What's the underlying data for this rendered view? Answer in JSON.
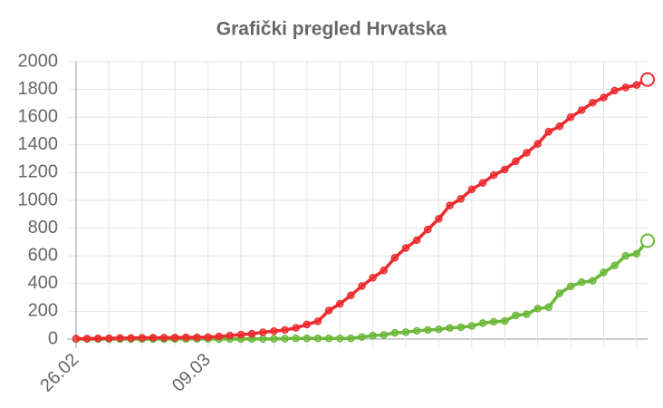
{
  "chart_data": {
    "type": "line",
    "title": "Grafički pregled Hrvatska",
    "categories": [
      "26.02",
      null,
      null,
      null,
      null,
      null,
      null,
      null,
      null,
      null,
      null,
      null,
      "09.03",
      null,
      null,
      null,
      null,
      null,
      null,
      null,
      null,
      null,
      null,
      null,
      null,
      null,
      null,
      null,
      null,
      null,
      null,
      null,
      null,
      null,
      null,
      null,
      null,
      null,
      null,
      null,
      null,
      null,
      null,
      null,
      null,
      null,
      null,
      null,
      null,
      null,
      null,
      null,
      null
    ],
    "series": [
      {
        "color": "#ee2a2e",
        "values": [
          3,
          3,
          5,
          6,
          7,
          7,
          9,
          10,
          10,
          11,
          12,
          12,
          14,
          19,
          25,
          32,
          38,
          49,
          57,
          65,
          81,
          105,
          128,
          206,
          254,
          315,
          382,
          442,
          495,
          586,
          657,
          713,
          790,
          867,
          963,
          1011,
          1079,
          1126,
          1182,
          1222,
          1282,
          1343,
          1407,
          1495,
          1534,
          1600,
          1650,
          1704,
          1741,
          1791,
          1814,
          1832,
          1871
        ]
      },
      {
        "color": "#6cb83a",
        "values": [
          0,
          0,
          0,
          0,
          0,
          0,
          0,
          0,
          0,
          1,
          1,
          1,
          1,
          1,
          1,
          1,
          2,
          2,
          2,
          3,
          5,
          5,
          5,
          5,
          5,
          5,
          15,
          25,
          30,
          45,
          50,
          60,
          65,
          70,
          80,
          85,
          95,
          115,
          125,
          130,
          170,
          180,
          220,
          230,
          330,
          380,
          410,
          420,
          480,
          530,
          600,
          615,
          709
        ]
      }
    ],
    "ylim": [
      0,
      2000
    ],
    "yticks": [
      0,
      200,
      400,
      600,
      800,
      1000,
      1200,
      1400,
      1600,
      1800,
      2000
    ],
    "grid": true
  }
}
